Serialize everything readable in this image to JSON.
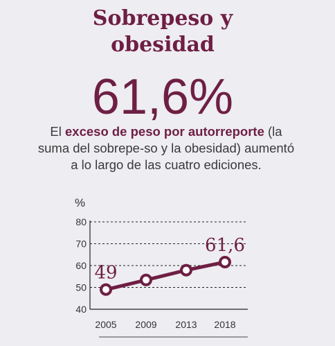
{
  "title_line1": "Sobrepeso y",
  "title_line2": "obesidad",
  "headline_value": "61,6%",
  "description": {
    "part1": "El ",
    "highlight": "exceso de peso por autorreporte",
    "part2": " (la suma del sobrepe-so y la obesidad) aumentó a lo largo de las cuatro ediciones."
  },
  "colors": {
    "accent": "#6e1f43",
    "background": "#eeedf2",
    "text": "#333333"
  },
  "chart_data": {
    "type": "line",
    "unit_label": "%",
    "categories": [
      "2005",
      "2009",
      "2013",
      "2018"
    ],
    "series": [
      {
        "values": [
          49,
          53.4,
          57.9,
          61.6
        ]
      }
    ],
    "data_labels": [
      {
        "index": 0,
        "text": "49"
      },
      {
        "index": 3,
        "text": "61,6"
      }
    ],
    "y_ticks": [
      "40",
      "50",
      "60",
      "70",
      "80"
    ],
    "ylim": [
      40,
      80
    ],
    "grid": true
  }
}
